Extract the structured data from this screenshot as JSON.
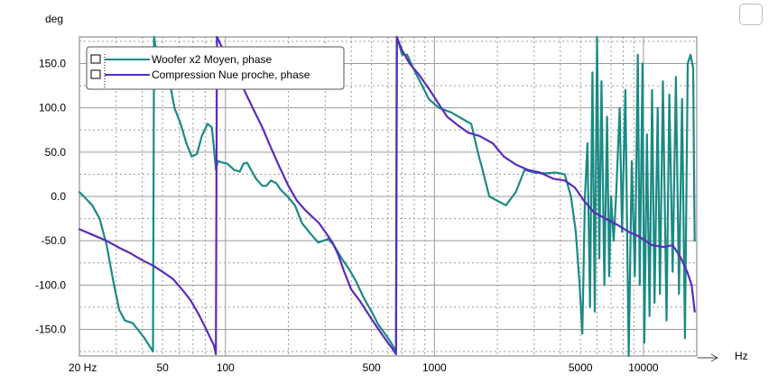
{
  "colors": {
    "series_teal": "#1a8a84",
    "series_purple": "#5a2bbd",
    "major_grid": "#9a9a9a",
    "minor_grid": "#9a9a9a",
    "background": "#ffffff"
  },
  "chart_data": {
    "type": "line",
    "title": "",
    "ylabel": "deg",
    "xlabel": "Hz",
    "x_scale": "log",
    "xlim": [
      20,
      18000
    ],
    "ylim": [
      -180,
      180
    ],
    "grid": true,
    "legend_placement": "top-left",
    "y_ticks": [
      {
        "value": 150,
        "label": "150.0"
      },
      {
        "value": 100,
        "label": "100.0"
      },
      {
        "value": 50,
        "label": "50.0"
      },
      {
        "value": 0,
        "label": "0.0"
      },
      {
        "value": -50,
        "label": "-50.0"
      },
      {
        "value": -100,
        "label": "-100.0"
      },
      {
        "value": -150,
        "label": "-150.0"
      }
    ],
    "x_ticks": [
      {
        "value": 20,
        "label": "20 Hz"
      },
      {
        "value": 50,
        "label": "50"
      },
      {
        "value": 100,
        "label": "100"
      },
      {
        "value": 500,
        "label": "500"
      },
      {
        "value": 1000,
        "label": "1000"
      },
      {
        "value": 5000,
        "label": "5000"
      },
      {
        "value": 10000,
        "label": "10000"
      }
    ],
    "series": [
      {
        "name": "Woofer x2 Moyen, phase",
        "color": "#1a8a84",
        "points": [
          [
            20,
            5
          ],
          [
            21,
            0
          ],
          [
            23,
            -10
          ],
          [
            25,
            -25
          ],
          [
            27,
            -55
          ],
          [
            29,
            -95
          ],
          [
            31,
            -128
          ],
          [
            33,
            -140
          ],
          [
            36,
            -143
          ],
          [
            38,
            -150
          ],
          [
            41,
            -160
          ],
          [
            45,
            -175
          ],
          [
            45.5,
            180
          ],
          [
            47.5,
            150
          ],
          [
            50,
            140
          ],
          [
            53,
            140
          ],
          [
            57,
            100
          ],
          [
            61,
            82
          ],
          [
            65,
            60
          ],
          [
            69,
            45
          ],
          [
            73,
            48
          ],
          [
            77,
            68
          ],
          [
            82,
            82
          ],
          [
            86,
            78
          ],
          [
            88,
            55
          ],
          [
            90,
            30
          ],
          [
            92,
            40
          ],
          [
            97,
            38
          ],
          [
            102,
            37
          ],
          [
            110,
            30
          ],
          [
            117,
            28
          ],
          [
            122,
            37
          ],
          [
            127,
            38
          ],
          [
            131,
            32
          ],
          [
            140,
            20
          ],
          [
            150,
            12
          ],
          [
            157,
            12
          ],
          [
            165,
            18
          ],
          [
            175,
            15
          ],
          [
            183,
            8
          ],
          [
            198,
            0
          ],
          [
            215,
            -10
          ],
          [
            232,
            -30
          ],
          [
            255,
            -42
          ],
          [
            278,
            -52
          ],
          [
            310,
            -48
          ],
          [
            330,
            -55
          ],
          [
            360,
            -70
          ],
          [
            390,
            -82
          ],
          [
            420,
            -95
          ],
          [
            460,
            -115
          ],
          [
            500,
            -130
          ],
          [
            540,
            -145
          ],
          [
            580,
            -155
          ],
          [
            620,
            -165
          ],
          [
            655,
            -175
          ],
          [
            662,
            180
          ],
          [
            700,
            160
          ],
          [
            740,
            160
          ],
          [
            790,
            145
          ],
          [
            860,
            128
          ],
          [
            940,
            110
          ],
          [
            1050,
            100
          ],
          [
            1200,
            95
          ],
          [
            1350,
            88
          ],
          [
            1500,
            82
          ],
          [
            1620,
            48
          ],
          [
            1700,
            30
          ],
          [
            1830,
            0
          ],
          [
            2000,
            -5
          ],
          [
            2200,
            -10
          ],
          [
            2450,
            5
          ],
          [
            2700,
            30
          ],
          [
            3000,
            27
          ],
          [
            3400,
            26
          ],
          [
            3800,
            27
          ],
          [
            4200,
            25
          ],
          [
            4500,
            0
          ],
          [
            4750,
            -40
          ],
          [
            4950,
            -100
          ],
          [
            5100,
            -155
          ],
          [
            5250,
            0
          ],
          [
            5400,
            60
          ],
          [
            5550,
            -125
          ],
          [
            5700,
            140
          ],
          [
            5850,
            -130
          ],
          [
            6000,
            180
          ],
          [
            6150,
            -70
          ],
          [
            6300,
            130
          ],
          [
            6500,
            -100
          ],
          [
            6700,
            90
          ],
          [
            6850,
            -90
          ],
          [
            7000,
            0
          ],
          [
            7200,
            -50
          ],
          [
            7400,
            0
          ],
          [
            7700,
            100
          ],
          [
            7900,
            -40
          ],
          [
            8200,
            120
          ],
          [
            8500,
            -180
          ],
          [
            8800,
            40
          ],
          [
            9100,
            -90
          ],
          [
            9400,
            160
          ],
          [
            9600,
            -100
          ],
          [
            9900,
            150
          ],
          [
            10100,
            -165
          ],
          [
            10400,
            70
          ],
          [
            10700,
            -135
          ],
          [
            11000,
            120
          ],
          [
            11300,
            -120
          ],
          [
            11700,
            100
          ],
          [
            12000,
            -110
          ],
          [
            12400,
            130
          ],
          [
            12900,
            -140
          ],
          [
            13300,
            115
          ],
          [
            13800,
            -85
          ],
          [
            14300,
            135
          ],
          [
            14800,
            -110
          ],
          [
            15300,
            110
          ],
          [
            15800,
            -160
          ],
          [
            16300,
            150
          ],
          [
            16800,
            160
          ],
          [
            17300,
            145
          ],
          [
            17500,
            0
          ],
          [
            17600,
            -50
          ]
        ]
      },
      {
        "name": "Compression Nue proche, phase",
        "color": "#5a2bbd",
        "points": [
          [
            20,
            -37
          ],
          [
            23,
            -43
          ],
          [
            27,
            -50
          ],
          [
            31,
            -58
          ],
          [
            35,
            -64
          ],
          [
            40,
            -72
          ],
          [
            45,
            -78
          ],
          [
            50,
            -85
          ],
          [
            56,
            -93
          ],
          [
            62,
            -105
          ],
          [
            68,
            -117
          ],
          [
            74,
            -132
          ],
          [
            79,
            -145
          ],
          [
            84,
            -158
          ],
          [
            88,
            -168
          ],
          [
            90,
            -178
          ],
          [
            91,
            180
          ],
          [
            100,
            160
          ],
          [
            110,
            140
          ],
          [
            120,
            125
          ],
          [
            135,
            100
          ],
          [
            150,
            78
          ],
          [
            165,
            55
          ],
          [
            180,
            35
          ],
          [
            200,
            12
          ],
          [
            220,
            -5
          ],
          [
            240,
            -15
          ],
          [
            260,
            -23
          ],
          [
            280,
            -30
          ],
          [
            300,
            -40
          ],
          [
            325,
            -52
          ],
          [
            345,
            -65
          ],
          [
            370,
            -85
          ],
          [
            400,
            -105
          ],
          [
            440,
            -118
          ],
          [
            490,
            -135
          ],
          [
            540,
            -150
          ],
          [
            590,
            -163
          ],
          [
            630,
            -172
          ],
          [
            655,
            -178
          ],
          [
            660,
            180
          ],
          [
            700,
            165
          ],
          [
            760,
            150
          ],
          [
            840,
            138
          ],
          [
            950,
            120
          ],
          [
            1050,
            104
          ],
          [
            1150,
            90
          ],
          [
            1300,
            80
          ],
          [
            1450,
            72
          ],
          [
            1650,
            68
          ],
          [
            1900,
            60
          ],
          [
            2150,
            45
          ],
          [
            2450,
            36
          ],
          [
            2800,
            30
          ],
          [
            3200,
            27
          ],
          [
            3700,
            20
          ],
          [
            4200,
            18
          ],
          [
            4700,
            10
          ],
          [
            5200,
            -5
          ],
          [
            5800,
            -18
          ],
          [
            6600,
            -25
          ],
          [
            7500,
            -32
          ],
          [
            8500,
            -40
          ],
          [
            9500,
            -45
          ],
          [
            11000,
            -55
          ],
          [
            12500,
            -57
          ],
          [
            13800,
            -55
          ],
          [
            15000,
            -68
          ],
          [
            16200,
            -85
          ],
          [
            17000,
            -100
          ],
          [
            17600,
            -130
          ]
        ]
      }
    ]
  }
}
